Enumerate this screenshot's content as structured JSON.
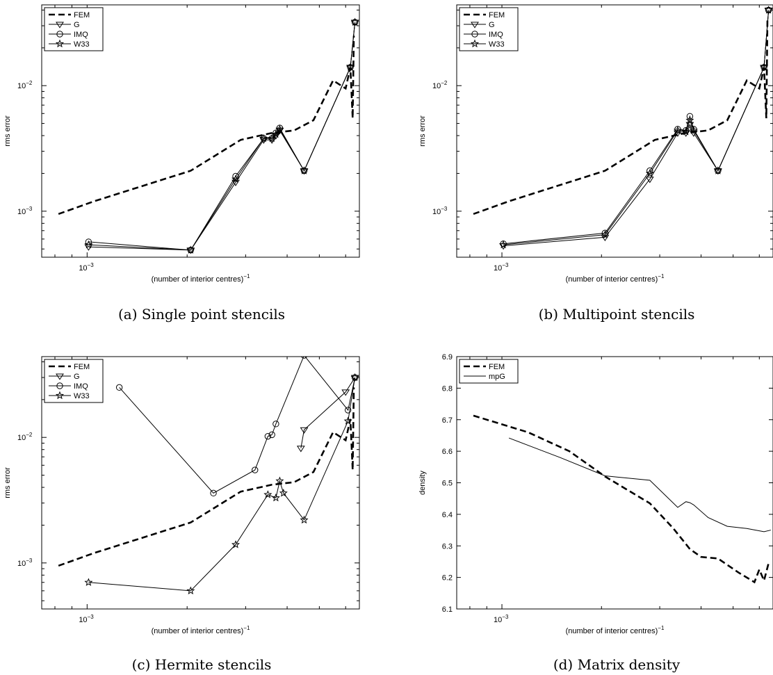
{
  "chart_data": [
    {
      "type": "line",
      "caption": "(a)  Single point stencils",
      "xlabel": "(number of interior centres)",
      "xlabel_sup": "−1",
      "ylabel": "rms error",
      "xscale": "log",
      "yscale": "log",
      "xlim": [
        0.00073,
        0.0066
      ],
      "ylim": [
        0.00043,
        0.044
      ],
      "xticks": [
        {
          "v": 0.001,
          "base": "10",
          "exp": "−3"
        }
      ],
      "yticks": [
        {
          "v": 0.001,
          "base": "10",
          "exp": "−3"
        },
        {
          "v": 0.01,
          "base": "10",
          "exp": "−2"
        }
      ],
      "legend": "top-left",
      "series": [
        {
          "name": "FEM",
          "style": "dashed",
          "marker": "none",
          "x": [
            0.00082,
            0.00105,
            0.00205,
            0.0029,
            0.0036,
            0.0042,
            0.0048,
            0.0055,
            0.006,
            0.0062,
            0.0063,
            0.00635
          ],
          "y": [
            0.00095,
            0.0012,
            0.0021,
            0.0037,
            0.0042,
            0.0044,
            0.0053,
            0.011,
            0.0095,
            0.014,
            0.0055,
            0.025
          ]
        },
        {
          "name": "G",
          "style": "solid",
          "marker": "triangle",
          "x": [
            0.00101,
            0.00205,
            0.0028,
            0.0034,
            0.0036,
            0.0037,
            0.0038,
            0.0045,
            0.0062,
            0.0064
          ],
          "y": [
            0.00052,
            0.00049,
            0.0017,
            0.0037,
            0.0037,
            0.004,
            0.0044,
            0.0021,
            0.014,
            0.032
          ]
        },
        {
          "name": "IMQ",
          "style": "solid",
          "marker": "circle",
          "x": [
            0.00101,
            0.00205,
            0.0028,
            0.0034,
            0.0036,
            0.0037,
            0.0038,
            0.0045,
            0.0062,
            0.0064
          ],
          "y": [
            0.00057,
            0.00049,
            0.0019,
            0.0038,
            0.0038,
            0.0042,
            0.0046,
            0.0021,
            0.014,
            0.032
          ]
        },
        {
          "name": "W33",
          "style": "solid",
          "marker": "star",
          "x": [
            0.00101,
            0.00205,
            0.0028,
            0.0034,
            0.0036,
            0.0037,
            0.0038,
            0.0045,
            0.0062,
            0.0064
          ],
          "y": [
            0.00054,
            0.00049,
            0.0018,
            0.0038,
            0.0038,
            0.0041,
            0.0045,
            0.0021,
            0.014,
            0.032
          ]
        }
      ]
    },
    {
      "type": "line",
      "caption": "(b)  Multipoint stencils",
      "xlabel": "(number of interior centres)",
      "xlabel_sup": "−1",
      "ylabel": "rms error",
      "xscale": "log",
      "yscale": "log",
      "xlim": [
        0.00073,
        0.0066
      ],
      "ylim": [
        0.00043,
        0.044
      ],
      "xticks": [
        {
          "v": 0.001,
          "base": "10",
          "exp": "−3"
        }
      ],
      "yticks": [
        {
          "v": 0.001,
          "base": "10",
          "exp": "−3"
        },
        {
          "v": 0.01,
          "base": "10",
          "exp": "−2"
        }
      ],
      "legend": "top-left",
      "series": [
        {
          "name": "FEM",
          "style": "dashed",
          "marker": "none",
          "x": [
            0.00082,
            0.00105,
            0.00205,
            0.0029,
            0.0036,
            0.0042,
            0.0048,
            0.0055,
            0.006,
            0.0062,
            0.0063,
            0.00635
          ],
          "y": [
            0.00095,
            0.0012,
            0.0021,
            0.0037,
            0.0042,
            0.0044,
            0.0053,
            0.011,
            0.0095,
            0.014,
            0.0055,
            0.035
          ]
        },
        {
          "name": "G",
          "style": "solid",
          "marker": "triangle",
          "x": [
            0.00101,
            0.00205,
            0.0028,
            0.0034,
            0.0036,
            0.0037,
            0.0038,
            0.0045,
            0.0062,
            0.0064
          ],
          "y": [
            0.00053,
            0.00062,
            0.0018,
            0.0042,
            0.0042,
            0.0049,
            0.0042,
            0.0021,
            0.014,
            0.04
          ]
        },
        {
          "name": "IMQ",
          "style": "solid",
          "marker": "circle",
          "x": [
            0.00101,
            0.00205,
            0.0028,
            0.0034,
            0.0036,
            0.0037,
            0.0038,
            0.0045,
            0.0062,
            0.0064
          ],
          "y": [
            0.00055,
            0.00067,
            0.0021,
            0.0045,
            0.0044,
            0.0057,
            0.0045,
            0.0021,
            0.014,
            0.04
          ]
        },
        {
          "name": "W33",
          "style": "solid",
          "marker": "star",
          "x": [
            0.00101,
            0.00205,
            0.0028,
            0.0034,
            0.0036,
            0.0037,
            0.0038,
            0.0045,
            0.0062,
            0.0064
          ],
          "y": [
            0.00054,
            0.00065,
            0.002,
            0.0044,
            0.0043,
            0.0053,
            0.0044,
            0.0021,
            0.014,
            0.04
          ]
        }
      ]
    },
    {
      "type": "line",
      "caption": "(c)  Hermite stencils",
      "xlabel": "(number of interior centres)",
      "xlabel_sup": "−1",
      "ylabel": "rms error",
      "xscale": "log",
      "yscale": "log",
      "xlim": [
        0.00073,
        0.0066
      ],
      "ylim": [
        0.00043,
        0.044
      ],
      "xticks": [
        {
          "v": 0.001,
          "base": "10",
          "exp": "−3"
        }
      ],
      "yticks": [
        {
          "v": 0.001,
          "base": "10",
          "exp": "−3"
        },
        {
          "v": 0.01,
          "base": "10",
          "exp": "−2"
        }
      ],
      "legend": "top-left",
      "series": [
        {
          "name": "FEM",
          "style": "dashed",
          "marker": "none",
          "x": [
            0.00082,
            0.00105,
            0.00205,
            0.0029,
            0.0036,
            0.0042,
            0.0048,
            0.0055,
            0.006,
            0.0062,
            0.0063,
            0.00635
          ],
          "y": [
            0.00095,
            0.0012,
            0.0021,
            0.0037,
            0.0042,
            0.0044,
            0.0053,
            0.011,
            0.0095,
            0.014,
            0.0055,
            0.025
          ]
        },
        {
          "name": "G",
          "style": "solid",
          "marker": "triangle",
          "x": [
            0.0044,
            0.0045,
            0.006,
            0.0064
          ],
          "y": [
            0.0082,
            0.0115,
            0.023,
            0.03
          ]
        },
        {
          "name": "IMQ",
          "style": "solid",
          "marker": "circle",
          "x": [
            0.00125,
            0.0024,
            0.0032,
            0.0035,
            0.0036,
            0.0037,
            0.0045,
            0.0061,
            0.0064
          ],
          "y": [
            0.025,
            0.0036,
            0.0055,
            0.0102,
            0.0105,
            0.0128,
            0.045,
            0.0165,
            0.03
          ]
        },
        {
          "name": "W33",
          "style": "solid",
          "marker": "star",
          "x": [
            0.00101,
            0.00205,
            0.0028,
            0.0035,
            0.0037,
            0.0038,
            0.0039,
            0.0045,
            0.0061,
            0.0064
          ],
          "y": [
            0.0007,
            0.0006,
            0.0014,
            0.0035,
            0.0033,
            0.0045,
            0.0036,
            0.0022,
            0.0135,
            0.03
          ]
        }
      ]
    },
    {
      "type": "line",
      "caption": "(d)  Matrix density",
      "xlabel": "(number of interior centres)",
      "xlabel_sup": "−1",
      "ylabel": "density",
      "xscale": "log",
      "yscale": "linear",
      "xlim": [
        0.00073,
        0.0066
      ],
      "ylim": [
        6.1,
        6.9
      ],
      "xticks": [
        {
          "v": 0.001,
          "base": "10",
          "exp": "−3"
        }
      ],
      "yticks": [
        {
          "v": 6.1,
          "label": "6.1"
        },
        {
          "v": 6.2,
          "label": "6.2"
        },
        {
          "v": 6.3,
          "label": "6.3"
        },
        {
          "v": 6.4,
          "label": "6.4"
        },
        {
          "v": 6.5,
          "label": "6.5"
        },
        {
          "v": 6.6,
          "label": "6.6"
        },
        {
          "v": 6.7,
          "label": "6.7"
        },
        {
          "v": 6.8,
          "label": "6.8"
        },
        {
          "v": 6.9,
          "label": "6.9"
        }
      ],
      "legend": "top-left",
      "series": [
        {
          "name": "FEM",
          "style": "dashed",
          "marker": "none",
          "x": [
            0.00082,
            0.0012,
            0.0016,
            0.00205,
            0.0028,
            0.0033,
            0.0037,
            0.004,
            0.0045,
            0.0052,
            0.0058,
            0.006,
            0.0062,
            0.0064
          ],
          "y": [
            6.713,
            6.66,
            6.6,
            6.52,
            6.435,
            6.355,
            6.29,
            6.265,
            6.26,
            6.215,
            6.185,
            6.225,
            6.19,
            6.245
          ]
        },
        {
          "name": "mpG",
          "style": "solid",
          "marker": "none",
          "x": [
            0.00105,
            0.0015,
            0.00205,
            0.0028,
            0.0034,
            0.0036,
            0.0037,
            0.0038,
            0.0042,
            0.0048,
            0.0055,
            0.0062,
            0.0065
          ],
          "y": [
            6.642,
            6.58,
            6.522,
            6.508,
            6.422,
            6.44,
            6.437,
            6.43,
            6.39,
            6.362,
            6.355,
            6.345,
            6.35
          ]
        }
      ]
    }
  ]
}
